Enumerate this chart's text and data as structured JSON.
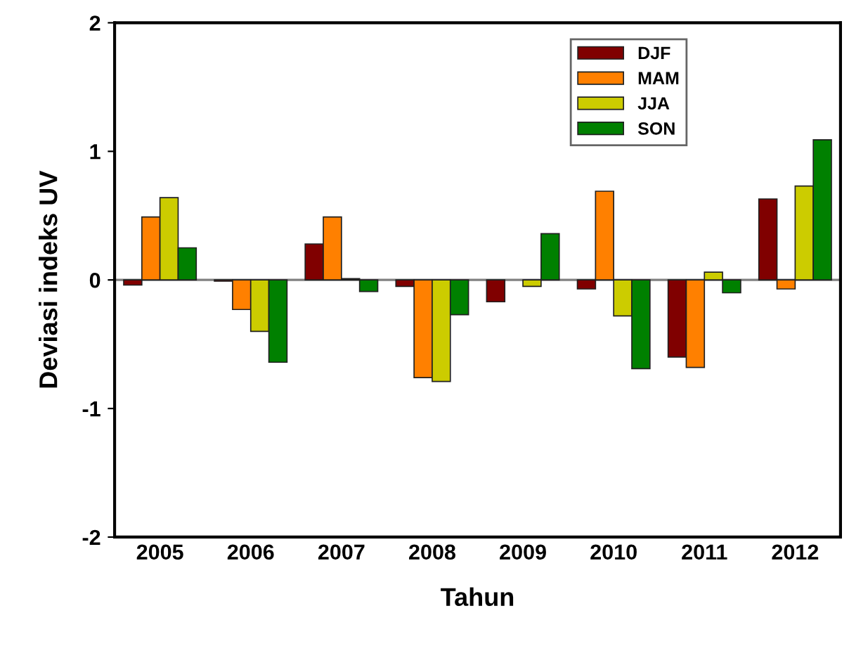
{
  "chart_data": {
    "type": "bar",
    "xlabel": "Tahun",
    "ylabel": "Deviasi indeks UV",
    "categories": [
      "2005",
      "2006",
      "2007",
      "2008",
      "2009",
      "2010",
      "2011",
      "2012"
    ],
    "series": [
      {
        "name": "DJF",
        "color": "#800000",
        "values": [
          -0.04,
          -0.01,
          0.28,
          -0.05,
          -0.17,
          -0.07,
          -0.6,
          0.63
        ]
      },
      {
        "name": "MAM",
        "color": "#ff8000",
        "values": [
          0.49,
          -0.23,
          0.49,
          -0.76,
          null,
          0.69,
          -0.68,
          -0.07
        ]
      },
      {
        "name": "JJA",
        "color": "#cccc00",
        "values": [
          0.64,
          -0.4,
          0.01,
          -0.79,
          -0.05,
          -0.28,
          0.06,
          0.73
        ]
      },
      {
        "name": "SON",
        "color": "#008000",
        "values": [
          0.25,
          -0.64,
          -0.09,
          -0.27,
          0.36,
          -0.69,
          -0.1,
          1.09
        ]
      }
    ],
    "ylim": [
      -2,
      2
    ],
    "yticks": [
      -2,
      -1,
      0,
      1,
      2
    ],
    "ref_lines": [
      {
        "axis": "y",
        "value": 0,
        "color": "#808080"
      }
    ],
    "grid": false,
    "legend": "top right"
  }
}
